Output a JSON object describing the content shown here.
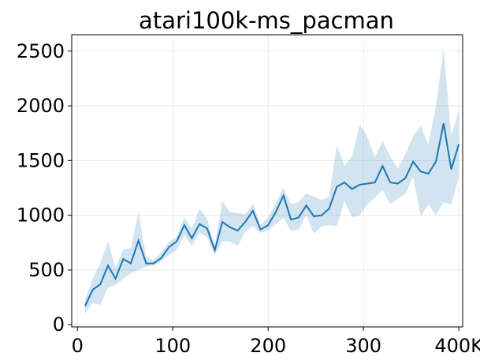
{
  "chart_data": {
    "type": "line",
    "title": "atari100k-ms_pacman",
    "xlabel": "",
    "ylabel": "",
    "xlim": [
      -6,
      404
    ],
    "ylim": [
      -20,
      2650
    ],
    "x_ticks": [
      0,
      100,
      200,
      300,
      400
    ],
    "x_tick_labels": [
      "0",
      "100",
      "200",
      "300",
      "400K"
    ],
    "y_ticks": [
      0,
      500,
      1000,
      1500,
      2000,
      2500
    ],
    "y_tick_labels": [
      "0",
      "500",
      "1000",
      "1500",
      "2000",
      "2500"
    ],
    "grid": true,
    "colors": {
      "line": "#1f77b4",
      "band": "#1f77b4",
      "grid": "#e6e6e6"
    },
    "series": [
      {
        "x": [
          8,
          16,
          24,
          32,
          40,
          48,
          56,
          64,
          72,
          80,
          88,
          96,
          104,
          112,
          120,
          128,
          136,
          144,
          152,
          160,
          168,
          176,
          184,
          192,
          200,
          208,
          216,
          224,
          232,
          240,
          248,
          256,
          264,
          272,
          280,
          288,
          296,
          304,
          312,
          320,
          328,
          336,
          344,
          352,
          360,
          368,
          376,
          384,
          392,
          400
        ],
        "y": [
          170,
          320,
          370,
          540,
          420,
          600,
          560,
          770,
          560,
          560,
          610,
          710,
          760,
          910,
          790,
          920,
          880,
          680,
          940,
          890,
          860,
          940,
          1040,
          870,
          910,
          1030,
          1180,
          960,
          980,
          1090,
          990,
          1000,
          1060,
          1260,
          1300,
          1240,
          1280,
          1290,
          1300,
          1450,
          1300,
          1290,
          1340,
          1490,
          1400,
          1380,
          1490,
          1840,
          1420,
          1650
        ],
        "lower": [
          100,
          200,
          180,
          340,
          360,
          420,
          470,
          500,
          530,
          540,
          580,
          640,
          680,
          820,
          720,
          840,
          800,
          640,
          760,
          760,
          720,
          850,
          900,
          840,
          860,
          920,
          980,
          860,
          870,
          1000,
          830,
          900,
          910,
          900,
          1130,
          980,
          1000,
          1100,
          1160,
          1230,
          1100,
          1150,
          1200,
          1350,
          990,
          1100,
          1000,
          1120,
          1100,
          1350
        ],
        "upper": [
          230,
          420,
          560,
          760,
          520,
          690,
          700,
          1030,
          620,
          590,
          660,
          760,
          800,
          980,
          880,
          1060,
          970,
          720,
          1130,
          1030,
          1020,
          1010,
          1110,
          910,
          980,
          1110,
          1250,
          1100,
          1120,
          1200,
          1170,
          1140,
          1170,
          1640,
          1450,
          1540,
          1830,
          1720,
          1530,
          1680,
          1540,
          1430,
          1560,
          1720,
          1820,
          1650,
          2000,
          2520,
          1720,
          1960
        ]
      }
    ]
  }
}
